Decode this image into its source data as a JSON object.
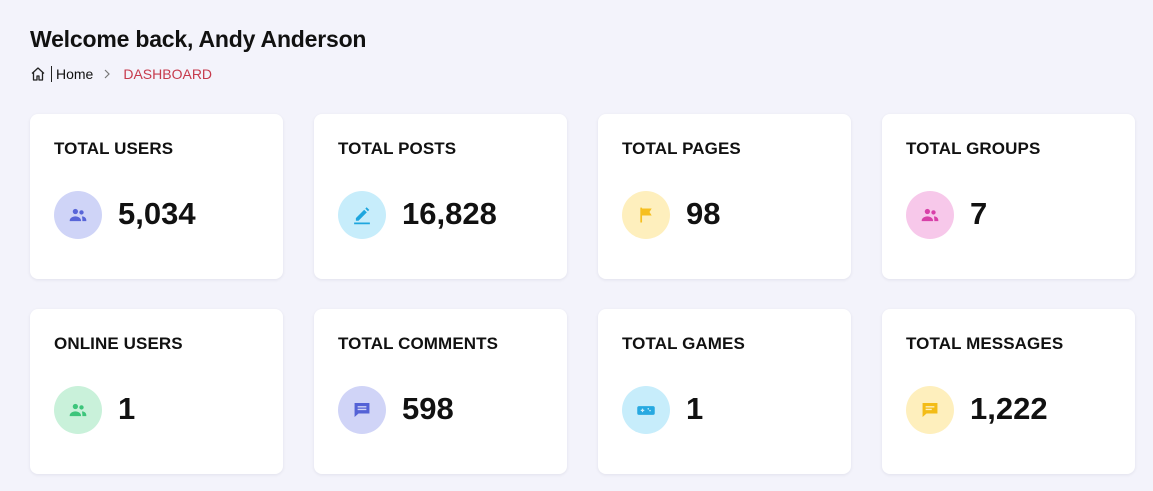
{
  "header": {
    "title": "Welcome back, Andy Anderson",
    "breadcrumb": [
      "Home",
      "DASHBOARD"
    ]
  },
  "cards": [
    {
      "label": "TOTAL USERS",
      "value": "5,034"
    },
    {
      "label": "TOTAL POSTS",
      "value": "16,828"
    },
    {
      "label": "TOTAL PAGES",
      "value": "98"
    },
    {
      "label": "TOTAL GROUPS",
      "value": "7"
    },
    {
      "label": "ONLINE USERS",
      "value": "1"
    },
    {
      "label": "TOTAL COMMENTS",
      "value": "598"
    },
    {
      "label": "TOTAL GAMES",
      "value": "1"
    },
    {
      "label": "TOTAL MESSAGES",
      "value": "1,222"
    }
  ]
}
